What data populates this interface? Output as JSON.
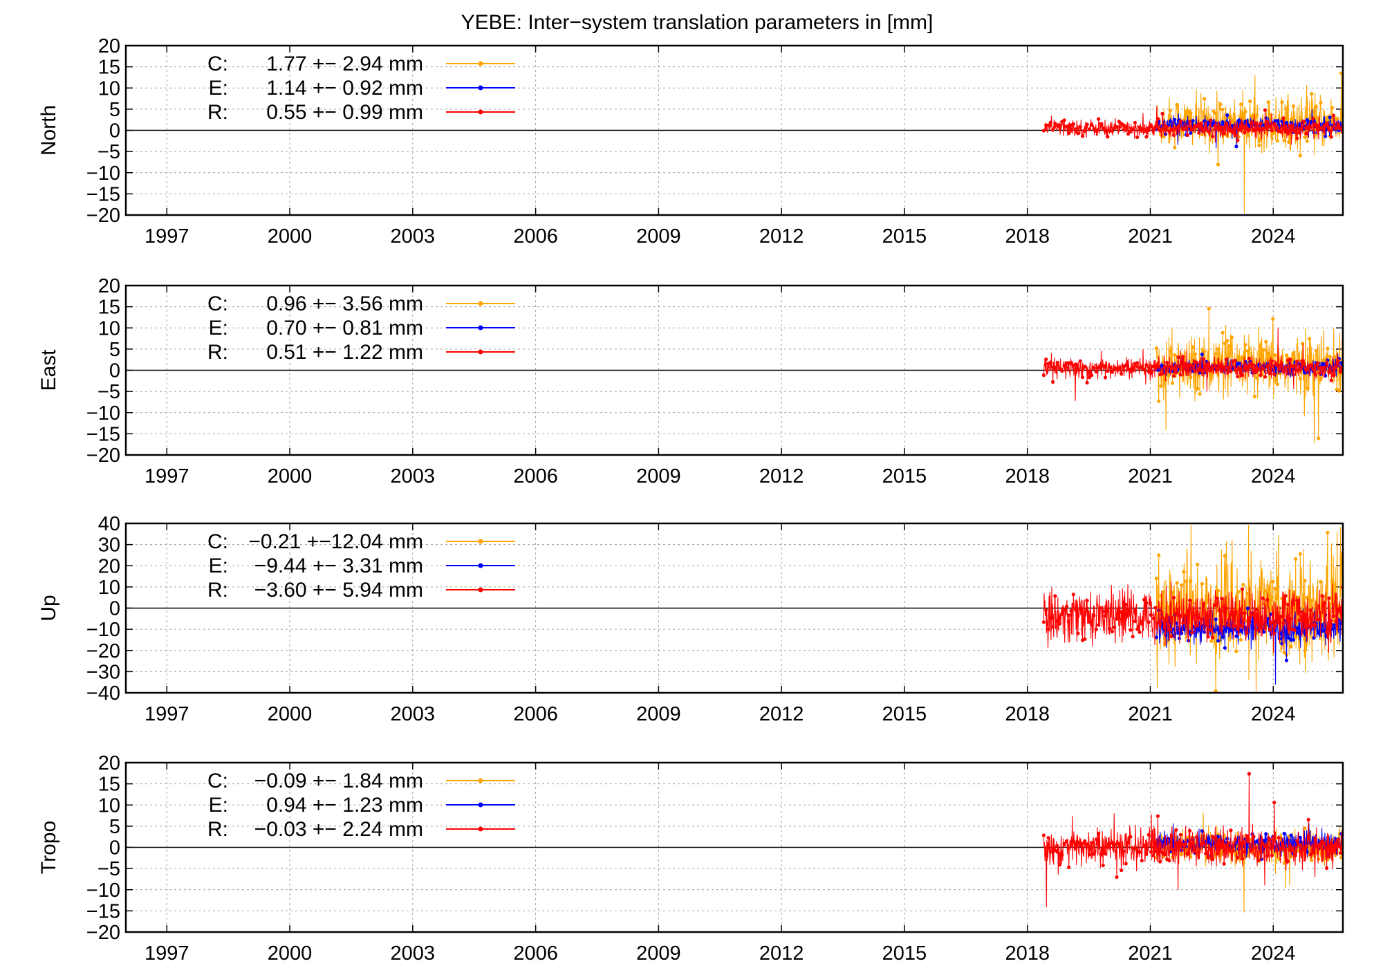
{
  "chart_data": {
    "title": "YEBE: Inter−system translation parameters in [mm]",
    "type": "line",
    "xlim": [
      1996,
      2025.7
    ],
    "xticks": [
      "1997",
      "2000",
      "2003",
      "2006",
      "2009",
      "2012",
      "2015",
      "2018",
      "2021",
      "2024"
    ],
    "grid": true,
    "legend_position": "top-left",
    "data_start": 2018.4,
    "series_styles": [
      {
        "key": "C",
        "color": "#ffa500",
        "start": 2021.15
      },
      {
        "key": "E",
        "color": "#0000ff",
        "start": 2021.15
      },
      {
        "key": "R",
        "color": "#ff0000",
        "start": 2018.4
      }
    ],
    "panels": [
      {
        "ylabel": "North",
        "ylim": [
          -20,
          20
        ],
        "yticks": [
          "20",
          "15",
          "10",
          "5",
          "0",
          "−5",
          "−10",
          "−15",
          "−20"
        ],
        "legend": [
          {
            "label": "C:",
            "value": "1.77 +− 2.94 mm"
          },
          {
            "label": "E:",
            "value": "1.14 +− 0.92 mm"
          },
          {
            "label": "R:",
            "value": "0.55 +− 0.99 mm"
          }
        ],
        "stats": [
          {
            "mean": 1.77,
            "sd": 2.94
          },
          {
            "mean": 1.14,
            "sd": 0.92
          },
          {
            "mean": 0.55,
            "sd": 0.99
          }
        ]
      },
      {
        "ylabel": "East",
        "ylim": [
          -20,
          20
        ],
        "yticks": [
          "20",
          "15",
          "10",
          "5",
          "0",
          "−5",
          "−10",
          "−15",
          "−20"
        ],
        "legend": [
          {
            "label": "C:",
            "value": "0.96 +− 3.56 mm"
          },
          {
            "label": "E:",
            "value": "0.70 +− 0.81 mm"
          },
          {
            "label": "R:",
            "value": "0.51 +− 1.22 mm"
          }
        ],
        "stats": [
          {
            "mean": 0.96,
            "sd": 3.56
          },
          {
            "mean": 0.7,
            "sd": 0.81
          },
          {
            "mean": 0.51,
            "sd": 1.22
          }
        ]
      },
      {
        "ylabel": "Up",
        "ylim": [
          -40,
          40
        ],
        "yticks": [
          "40",
          "30",
          "20",
          "10",
          "0",
          "−10",
          "−20",
          "−30",
          "−40"
        ],
        "legend": [
          {
            "label": "C:",
            "value": "−0.21 +−12.04 mm"
          },
          {
            "label": "E:",
            "value": "−9.44 +− 3.31 mm"
          },
          {
            "label": "R:",
            "value": "−3.60 +− 5.94 mm"
          }
        ],
        "stats": [
          {
            "mean": -0.21,
            "sd": 12.04
          },
          {
            "mean": -9.44,
            "sd": 3.31
          },
          {
            "mean": -3.6,
            "sd": 5.94
          }
        ]
      },
      {
        "ylabel": "Tropo",
        "ylim": [
          -20,
          20
        ],
        "yticks": [
          "20",
          "15",
          "10",
          "5",
          "0",
          "−5",
          "−10",
          "−15",
          "−20"
        ],
        "legend": [
          {
            "label": "C:",
            "value": "−0.09 +− 1.84 mm"
          },
          {
            "label": "E:",
            "value": "0.94 +− 1.23 mm"
          },
          {
            "label": "R:",
            "value": "−0.03 +− 2.24 mm"
          }
        ],
        "stats": [
          {
            "mean": -0.09,
            "sd": 1.84
          },
          {
            "mean": 0.94,
            "sd": 1.23
          },
          {
            "mean": -0.03,
            "sd": 2.24
          }
        ]
      }
    ]
  }
}
